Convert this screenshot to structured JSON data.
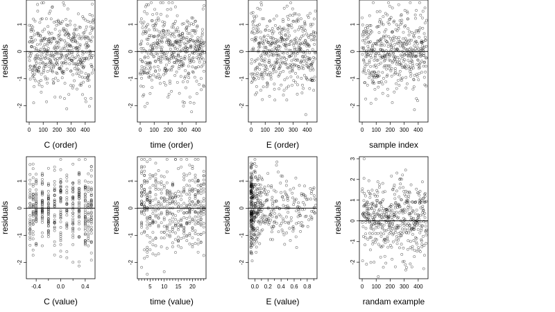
{
  "figure": {
    "background": "#ffffff",
    "point_color": "#000000",
    "point_style": "hollow-circle"
  },
  "chart_data": [
    {
      "type": "scatter",
      "xlabel": "C (order)",
      "ylabel": "residuals",
      "xlim": [
        -20,
        470
      ],
      "ylim": [
        -2.6,
        1.9
      ],
      "xticks": [
        0,
        100,
        200,
        300,
        400
      ],
      "yticks": [
        -2,
        -1,
        0,
        1
      ],
      "hline": 0,
      "pattern": "index",
      "n_points": 460,
      "seed": 11
    },
    {
      "type": "scatter",
      "xlabel": "time (order)",
      "ylabel": "residuals",
      "xlim": [
        -20,
        470
      ],
      "ylim": [
        -2.6,
        1.9
      ],
      "xticks": [
        0,
        100,
        200,
        300,
        400
      ],
      "yticks": [
        -2,
        -1,
        0,
        1
      ],
      "hline": 0,
      "pattern": "index",
      "n_points": 460,
      "seed": 23
    },
    {
      "type": "scatter",
      "xlabel": "E (order)",
      "ylabel": "residuals",
      "xlim": [
        -20,
        470
      ],
      "ylim": [
        -2.6,
        1.9
      ],
      "xticks": [
        0,
        100,
        200,
        300,
        400
      ],
      "yticks": [
        -2,
        -1,
        0,
        1
      ],
      "hline": 0,
      "pattern": "index",
      "n_points": 460,
      "seed": 37
    },
    {
      "type": "scatter",
      "xlabel": "sample index",
      "ylabel": "residuals",
      "xlim": [
        -20,
        470
      ],
      "ylim": [
        -2.6,
        1.9
      ],
      "xticks": [
        0,
        100,
        200,
        300,
        400
      ],
      "yticks": [
        -2,
        -1,
        0,
        1
      ],
      "hline": 0,
      "pattern": "index",
      "n_points": 460,
      "seed": 41
    },
    {
      "type": "scatter",
      "xlabel": "C (value)",
      "ylabel": "residuals",
      "xlim": [
        -0.56,
        0.56
      ],
      "ylim": [
        -2.6,
        1.9
      ],
      "xticks": [
        -0.4,
        0.0,
        0.4
      ],
      "xtick_labels": [
        "-0.4",
        "0.0",
        "0.4"
      ],
      "minor_xticks": [
        -0.2,
        0.2
      ],
      "yticks": [
        -2,
        -1,
        0,
        1
      ],
      "hline": 0,
      "pattern": "columns",
      "x_levels": [
        -0.5,
        -0.45,
        -0.4,
        -0.3,
        -0.2,
        -0.1,
        0.0,
        0.1,
        0.2,
        0.3,
        0.4,
        0.45,
        0.5
      ],
      "n_points": 460,
      "seed": 53
    },
    {
      "type": "scatter",
      "xlabel": "time (value)",
      "ylabel": "residuals",
      "xlim": [
        0.5,
        24.8
      ],
      "ylim": [
        -2.6,
        1.9
      ],
      "xticks": [
        5,
        10,
        15,
        20
      ],
      "minor_xticks": [
        1,
        2,
        3,
        4,
        6,
        7,
        8,
        9,
        11,
        12,
        13,
        14,
        16,
        17,
        18,
        19,
        21,
        22,
        23,
        24
      ],
      "yticks": [
        -2,
        -1,
        0,
        1
      ],
      "hline": 0,
      "pattern": "columns",
      "x_levels": [
        2,
        3,
        4,
        5,
        6,
        7,
        8,
        9,
        10,
        11,
        12,
        13,
        14,
        15,
        16,
        17,
        18,
        19,
        20,
        21,
        22,
        23,
        24
      ],
      "n_points": 460,
      "seed": 67
    },
    {
      "type": "scatter",
      "xlabel": "E (value)",
      "ylabel": "residuals",
      "xlim": [
        -0.1,
        0.95
      ],
      "ylim": [
        -2.6,
        1.9
      ],
      "xticks": [
        0.0,
        0.2,
        0.4,
        0.6,
        0.8
      ],
      "xtick_labels": [
        "0.0",
        "0.2",
        "0.4",
        "0.6",
        "0.8"
      ],
      "minor_xticks": [
        0.1,
        0.3,
        0.5,
        0.7,
        0.9
      ],
      "yticks": [
        -2,
        -1,
        0,
        1
      ],
      "hline": 0,
      "pattern": "skewed",
      "n_points": 460,
      "seed": 79
    },
    {
      "type": "scatter",
      "xlabel": "randam example",
      "ylabel": "residuals",
      "xlim": [
        -20,
        470
      ],
      "ylim": [
        -2.8,
        3.1
      ],
      "xticks": [
        0,
        100,
        200,
        300,
        400
      ],
      "yticks": [
        -2,
        -1,
        0,
        1,
        2,
        3
      ],
      "hline": 0,
      "pattern": "index",
      "n_points": 460,
      "seed": 97
    }
  ]
}
